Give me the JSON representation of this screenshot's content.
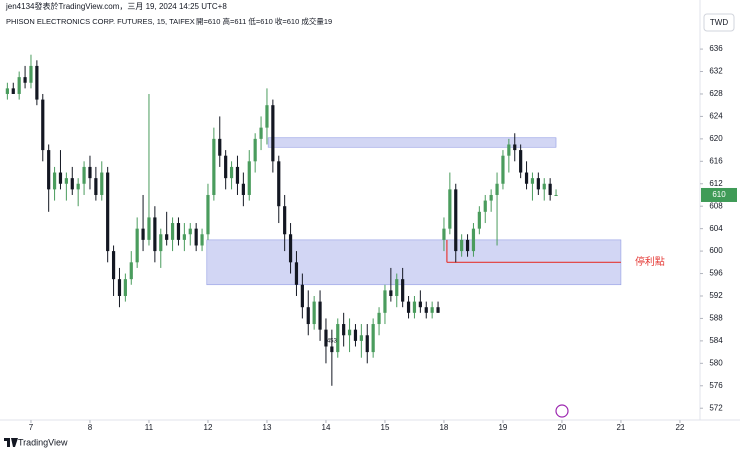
{
  "chart_data": {
    "type": "candlestick",
    "attribution": "jen4134發表於TradingView.com，三月 19, 2024 14:25 UTC+8",
    "title": "PHISON ELECTRONICS CORP. FUTURES, 15, TAIFEX",
    "ohlc_summary": "開=610 高=611 低=610 收=610 成交量19",
    "currency": "TWD",
    "footer": "TradingView",
    "annotation": {
      "text": "453",
      "x": 56,
      "y": 584
    },
    "up_color": "#4a9c5d",
    "down_color": "#131722",
    "x": [
      1,
      2,
      3,
      4,
      5,
      6,
      7,
      8,
      9,
      10,
      11,
      12,
      13,
      14,
      15,
      16,
      17,
      18,
      19,
      20,
      21,
      22,
      23,
      24,
      25,
      26,
      27,
      28,
      29,
      30,
      31,
      32,
      33,
      34,
      35,
      36,
      37,
      38,
      39,
      40,
      41,
      42,
      43,
      44,
      45,
      46,
      47,
      48,
      49,
      50,
      51,
      52,
      53,
      54,
      55,
      56,
      57,
      58,
      59,
      60,
      61,
      62,
      63,
      64,
      65,
      66,
      67,
      68,
      69,
      70,
      71,
      72,
      73,
      74,
      75,
      76,
      77,
      78,
      79,
      80,
      81,
      82,
      83,
      84,
      85,
      86,
      87,
      88,
      89,
      90,
      91,
      92,
      93,
      94
    ],
    "open": [
      628,
      629,
      628,
      631,
      630,
      633,
      627,
      618,
      611,
      614,
      612,
      613,
      611,
      612,
      615,
      613,
      610,
      614,
      600,
      595,
      592,
      595,
      598,
      604,
      602,
      606,
      600,
      603,
      602,
      605,
      602,
      603,
      604,
      601,
      603,
      610,
      620,
      617,
      613,
      615,
      612,
      610,
      616,
      620,
      622,
      626,
      616,
      608,
      603,
      598,
      594,
      590,
      587,
      591,
      586,
      583,
      582,
      587,
      585,
      586,
      584,
      585,
      582,
      587,
      589,
      593,
      592,
      595,
      591,
      589,
      591,
      590,
      589,
      590,
      602,
      604,
      611,
      600,
      602,
      600,
      604,
      607,
      609,
      610,
      612,
      617,
      619,
      618,
      614,
      612,
      613,
      611,
      612,
      610
    ],
    "high": [
      630,
      630,
      632,
      633,
      635,
      634,
      628,
      619,
      615,
      618,
      614,
      615,
      613,
      616,
      617,
      615,
      616,
      615,
      601,
      597,
      596,
      600,
      606,
      610,
      628,
      608,
      604,
      607,
      606,
      606,
      605,
      605,
      605,
      604,
      612,
      622,
      624,
      618,
      616,
      617,
      614,
      618,
      621,
      624,
      629,
      627,
      617,
      610,
      605,
      600,
      596,
      593,
      592,
      593,
      588,
      586,
      588,
      589,
      588,
      587,
      587,
      587,
      588,
      590,
      594,
      597,
      596,
      597,
      592,
      592,
      593,
      591,
      591,
      591,
      606,
      614,
      612,
      603,
      603,
      605,
      608,
      610,
      611,
      614,
      618,
      620,
      621,
      619,
      616,
      614,
      614,
      613,
      613,
      611
    ],
    "low": [
      627,
      628,
      627,
      629,
      629,
      626,
      616,
      607,
      609,
      611,
      609,
      610,
      608,
      610,
      611,
      609,
      609,
      598,
      592,
      590,
      591,
      594,
      597,
      600,
      601,
      598,
      597,
      601,
      600,
      601,
      600,
      601,
      600,
      600,
      602,
      609,
      615,
      611,
      611,
      610,
      608,
      609,
      614,
      618,
      619,
      614,
      605,
      600,
      596,
      592,
      588,
      585,
      586,
      584,
      580,
      576,
      581,
      583,
      582,
      583,
      581,
      580,
      581,
      585,
      587,
      591,
      590,
      590,
      588,
      588,
      589,
      588,
      588,
      589,
      600,
      603,
      598,
      599,
      599,
      599,
      603,
      605,
      607,
      601,
      611,
      614,
      616,
      613,
      611,
      609,
      610,
      609,
      609,
      610
    ],
    "close": [
      629,
      628,
      631,
      630,
      633,
      627,
      618,
      611,
      614,
      612,
      613,
      611,
      612,
      615,
      613,
      610,
      614,
      600,
      595,
      592,
      595,
      598,
      604,
      602,
      606,
      600,
      603,
      602,
      605,
      602,
      603,
      604,
      601,
      603,
      610,
      620,
      617,
      613,
      615,
      612,
      610,
      616,
      620,
      622,
      626,
      616,
      608,
      603,
      598,
      594,
      590,
      587,
      591,
      586,
      583,
      582,
      587,
      585,
      586,
      584,
      585,
      582,
      587,
      589,
      593,
      592,
      595,
      591,
      589,
      591,
      590,
      589,
      590,
      589,
      604,
      611,
      600,
      602,
      600,
      604,
      607,
      609,
      610,
      612,
      617,
      619,
      618,
      614,
      612,
      613,
      611,
      612,
      610,
      610
    ],
    "zones": [
      {
        "x": [
          45.2,
          94
        ],
        "y": [
          618.5,
          620.2
        ]
      },
      {
        "x": [
          34.8,
          105
        ],
        "y": [
          594,
          602
        ]
      }
    ],
    "stop_line": {
      "label": "停利點",
      "x": [
        75.5,
        105
      ],
      "y": 598,
      "y_start": 602,
      "color": "#e53935"
    },
    "last_price": 610,
    "last_price_color": "#3f9b57",
    "xlim": [
      -0.25,
      118.4
    ],
    "xticks": [
      {
        "value": 5,
        "label": "7"
      },
      {
        "value": 15,
        "label": "8"
      },
      {
        "value": 25,
        "label": "11"
      },
      {
        "value": 35,
        "label": "12"
      },
      {
        "value": 45,
        "label": "13"
      },
      {
        "value": 55,
        "label": "14"
      },
      {
        "value": 65,
        "label": "15"
      },
      {
        "value": 75,
        "label": "18"
      },
      {
        "value": 85,
        "label": "19"
      },
      {
        "value": 95,
        "label": "20"
      },
      {
        "value": 105,
        "label": "21"
      },
      {
        "value": 115,
        "label": "22"
      }
    ],
    "ylim": [
      569.9,
      639.4
    ],
    "yticks": [
      572,
      576,
      580,
      584,
      588,
      592,
      596,
      600,
      604,
      608,
      612,
      616,
      620,
      624,
      628,
      632,
      636
    ]
  }
}
